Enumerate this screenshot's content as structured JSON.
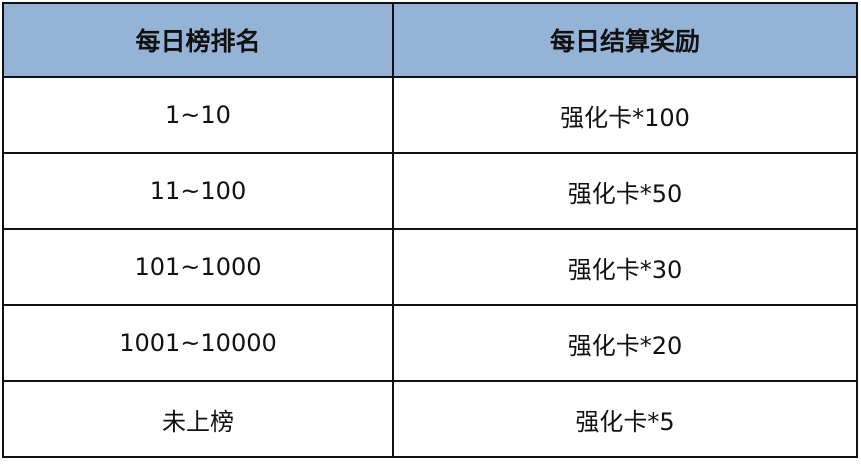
{
  "table": {
    "headers": [
      "每日榜排名",
      "每日结算奖励"
    ],
    "rows": [
      [
        "1~10",
        "强化卡*100"
      ],
      [
        "11~100",
        "强化卡*50"
      ],
      [
        "101~1000",
        "强化卡*30"
      ],
      [
        "1001~10000",
        "强化卡*20"
      ],
      [
        "未上榜",
        "强化卡*5"
      ]
    ]
  },
  "colors": {
    "header_bg": "#95b3d7",
    "border": "#111111"
  }
}
